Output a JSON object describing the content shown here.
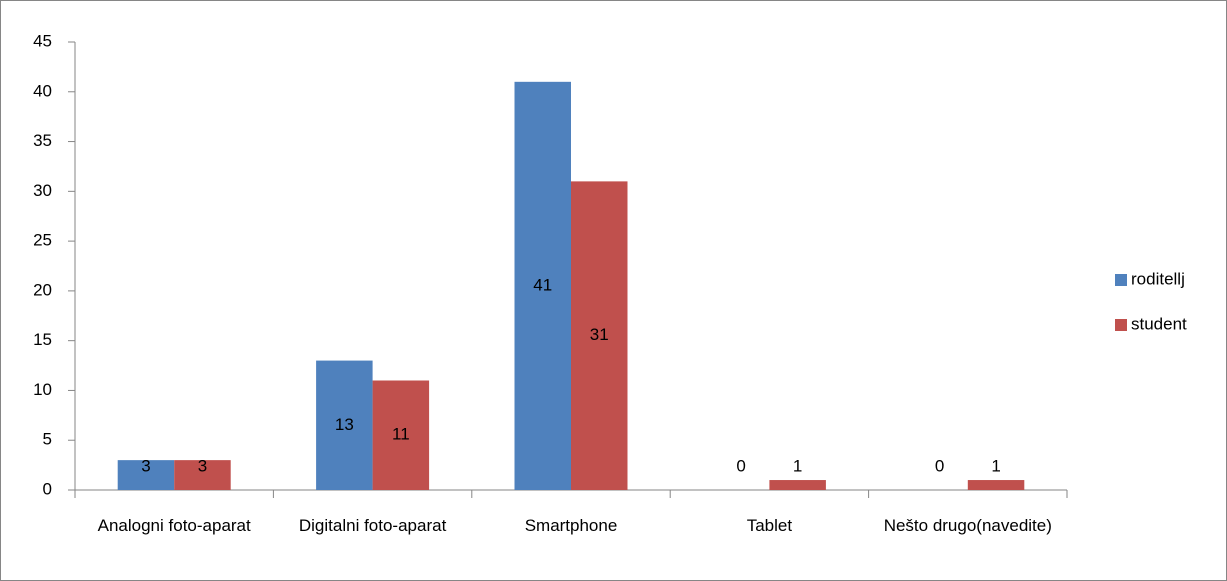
{
  "chart_data": {
    "type": "bar",
    "categories": [
      "Analogni foto-aparat",
      "Digitalni foto-aparat",
      "Smartphone",
      "Tablet",
      "Nešto drugo(navedite)"
    ],
    "series": [
      {
        "name": "roditellj",
        "color": "#4f81bd",
        "values": [
          3,
          13,
          41,
          0,
          0
        ]
      },
      {
        "name": "student",
        "color": "#c0504d",
        "values": [
          3,
          11,
          31,
          1,
          1
        ]
      }
    ],
    "ylim": [
      0,
      45
    ],
    "yticks": [
      0,
      5,
      10,
      15,
      20,
      25,
      30,
      35,
      40,
      45
    ],
    "grid": false,
    "legend": "right",
    "data_labels": true
  }
}
